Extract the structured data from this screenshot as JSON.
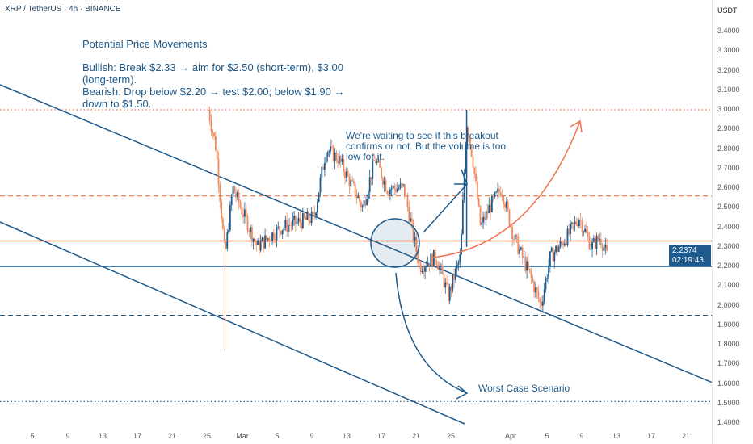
{
  "header": {
    "symbol": "XRP / TetherUS · 4h · BINANCE",
    "currency": "USDT"
  },
  "annotations": {
    "title": "Potential Price Movements",
    "bullish": "Bullish: Break $2.33 → aim for $2.50 (short-term), $3.00 (long-term).",
    "bearish": "Bearish: Drop below $2.20 → test $2.00; below $1.90 → down to $1.50.",
    "waiting": "We're waiting to see if this breakout confirms or not. But the volume is too low for it.",
    "worst": "Worst Case Scenario"
  },
  "price_badge": {
    "price": "2.2374",
    "countdown": "02:19:43"
  },
  "colors": {
    "up": "#1e5a8c",
    "down": "#f08a5d",
    "orange": "#f0714a",
    "blue": "#1e5a8c"
  },
  "chart_data": {
    "type": "candlestick",
    "title": "XRP / TetherUS · 4h · BINANCE",
    "ylabel": "USDT",
    "ylim": [
      1.4,
      3.4
    ],
    "y_ticks": [
      "3.4000",
      "3.3000",
      "3.2000",
      "3.1000",
      "3.0000",
      "2.9000",
      "2.8000",
      "2.7000",
      "2.6000",
      "2.5000",
      "2.4000",
      "2.3000",
      "2.2000",
      "2.1000",
      "2.0000",
      "1.9000",
      "1.8000",
      "1.7000",
      "1.6000",
      "1.5000",
      "1.4000"
    ],
    "x_ticks": [
      "5",
      "9",
      "13",
      "17",
      "21",
      "25",
      "Mar",
      "5",
      "9",
      "13",
      "17",
      "21",
      "25",
      "Apr",
      "5",
      "9",
      "13",
      "17",
      "21"
    ],
    "price_path_day_price": [
      [
        -3.9,
        3.0
      ],
      [
        -3,
        2.8
      ],
      [
        -2,
        2.25
      ],
      [
        -1.1,
        2.6
      ],
      [
        1.7,
        2.3
      ],
      [
        4.5,
        2.4
      ],
      [
        8.2,
        2.45
      ],
      [
        9.6,
        2.8
      ],
      [
        11,
        2.75
      ],
      [
        13.8,
        2.5
      ],
      [
        15.2,
        2.75
      ],
      [
        16.6,
        2.6
      ],
      [
        18.5,
        2.6
      ],
      [
        20.3,
        2.2
      ],
      [
        22.2,
        2.25
      ],
      [
        23.6,
        2.05
      ],
      [
        25,
        2.25
      ],
      [
        25.7,
        2.95
      ],
      [
        26.4,
        2.75
      ],
      [
        27.3,
        2.4
      ],
      [
        28.3,
        2.5
      ],
      [
        29.7,
        2.6
      ],
      [
        31.1,
        2.35
      ],
      [
        33,
        2.15
      ],
      [
        34.2,
        2.0
      ],
      [
        35.3,
        2.25
      ],
      [
        37.2,
        2.35
      ],
      [
        38.6,
        2.45
      ],
      [
        40,
        2.3
      ],
      [
        41,
        2.35
      ],
      [
        41.9,
        2.24
      ]
    ],
    "levels": [
      {
        "price": 3.0,
        "style": "dotted",
        "color": "orange"
      },
      {
        "price": 2.56,
        "style": "dashed",
        "color": "orange"
      },
      {
        "price": 2.33,
        "style": "solid",
        "color": "orange"
      },
      {
        "price": 2.2,
        "style": "solid",
        "color": "blue"
      },
      {
        "price": 1.95,
        "style": "dashed",
        "color": "blue"
      },
      {
        "price": 1.51,
        "style": "dotted",
        "color": "blue"
      }
    ],
    "last_price": 2.2374
  }
}
